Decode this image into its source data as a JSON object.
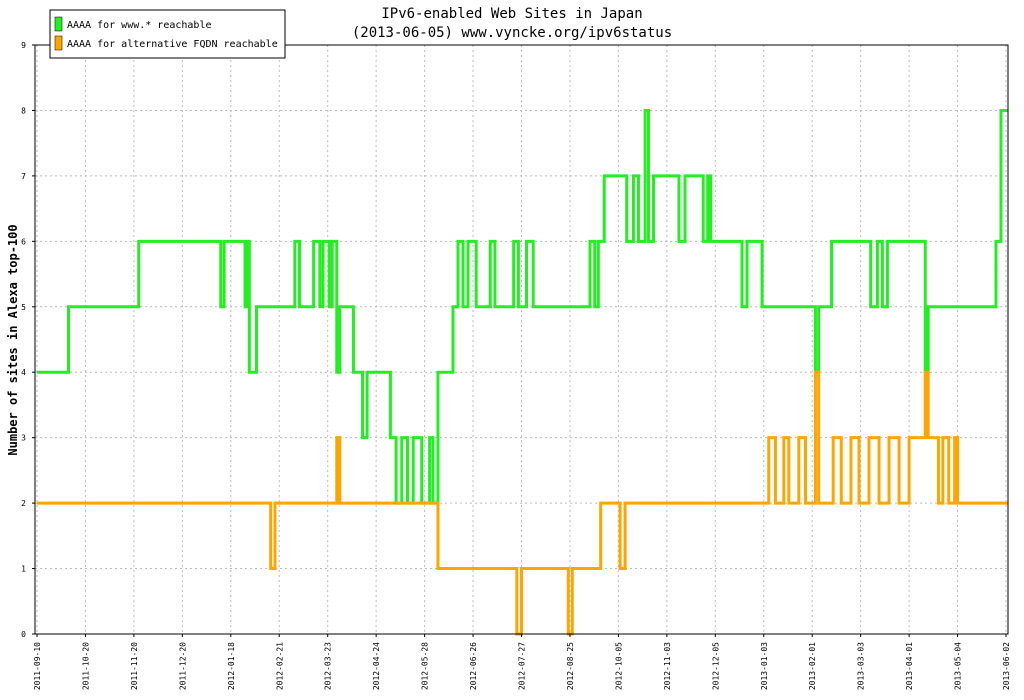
{
  "chart_data": {
    "type": "line",
    "step": "post",
    "title": "IPv6-enabled Web Sites in Japan",
    "subtitle": "(2013-06-05) www.vyncke.org/ipv6status",
    "y_label": "Number of sites in Alexa top-100",
    "grid": true,
    "legend": "upper left",
    "xlim": [
      "2011-09-10",
      "2013-06-03"
    ],
    "xticks": [
      "2011-09-10",
      "2011-10-20",
      "2011-11-20",
      "2011-12-20",
      "2012-01-18",
      "2012-02-21",
      "2012-03-23",
      "2012-04-24",
      "2012-05-28",
      "2012-06-26",
      "2012-07-27",
      "2012-08-25",
      "2012-10-05",
      "2012-11-03",
      "2012-12-05",
      "2013-01-03",
      "2013-02-01",
      "2013-03-03",
      "2013-04-01",
      "2013-05-04",
      "2013-06-02"
    ],
    "ylim": [
      0,
      9
    ],
    "yticks": [
      0,
      1,
      2,
      3,
      4,
      5,
      6,
      7,
      8,
      9
    ],
    "x": [
      "2011-09-10",
      "2011-10-06",
      "2011-11-23",
      "2012-01-12",
      "2012-01-14",
      "2012-01-28",
      "2012-01-29",
      "2012-01-31",
      "2012-02-05",
      "2012-02-15",
      "2012-02-18",
      "2012-03-02",
      "2012-03-05",
      "2012-03-14",
      "2012-03-18",
      "2012-03-20",
      "2012-03-24",
      "2012-03-26",
      "2012-03-29",
      "2012-03-31",
      "2012-04-09",
      "2012-04-15",
      "2012-04-18",
      "2012-05-04",
      "2012-05-08",
      "2012-05-12",
      "2012-05-16",
      "2012-05-20",
      "2012-05-26",
      "2012-05-31",
      "2012-06-02",
      "2012-06-05",
      "2012-06-14",
      "2012-06-17",
      "2012-06-20",
      "2012-06-23",
      "2012-06-28",
      "2012-07-07",
      "2012-07-10",
      "2012-07-22",
      "2012-07-24",
      "2012-07-25",
      "2012-07-27",
      "2012-07-30",
      "2012-08-03",
      "2012-08-24",
      "2012-08-27",
      "2012-09-11",
      "2012-09-15",
      "2012-09-18",
      "2012-09-20",
      "2012-09-23",
      "2012-10-06",
      "2012-10-09",
      "2012-10-10",
      "2012-10-14",
      "2012-10-17",
      "2012-10-21",
      "2012-10-23",
      "2012-10-26",
      "2012-11-11",
      "2012-11-15",
      "2012-11-27",
      "2012-11-30",
      "2012-12-02",
      "2012-12-21",
      "2012-12-24",
      "2013-01-02",
      "2013-01-06",
      "2013-01-10",
      "2013-01-15",
      "2013-01-18",
      "2013-01-24",
      "2013-01-28",
      "2013-02-03",
      "2013-02-05",
      "2013-02-13",
      "2013-02-14",
      "2013-02-19",
      "2013-02-25",
      "2013-03-02",
      "2013-03-08",
      "2013-03-09",
      "2013-03-13",
      "2013-03-14",
      "2013-03-16",
      "2013-03-19",
      "2013-03-20",
      "2013-03-26",
      "2013-04-01",
      "2013-04-12",
      "2013-04-14",
      "2013-04-21",
      "2013-04-24",
      "2013-04-28",
      "2013-05-02",
      "2013-05-04",
      "2013-05-27",
      "2013-05-30",
      "2013-06-03"
    ],
    "series": [
      {
        "name": "AAAA for www.* reachable",
        "color": "#22ee22",
        "values": [
          4,
          5,
          6,
          5,
          6,
          5,
          6,
          4,
          5,
          5,
          5,
          6,
          5,
          6,
          5,
          6,
          5,
          6,
          4,
          5,
          4,
          3,
          4,
          3,
          2,
          3,
          2,
          3,
          2,
          3,
          2,
          4,
          5,
          6,
          5,
          6,
          5,
          6,
          5,
          6,
          6,
          5,
          5,
          6,
          5,
          5,
          5,
          6,
          5,
          6,
          6,
          7,
          7,
          7,
          6,
          7,
          6,
          8,
          6,
          7,
          6,
          7,
          6,
          7,
          6,
          5,
          6,
          5,
          5,
          5,
          5,
          5,
          5,
          5,
          4,
          5,
          6,
          6,
          6,
          6,
          6,
          6,
          5,
          6,
          6,
          5,
          6,
          6,
          6,
          6,
          4,
          5,
          5,
          5,
          5,
          5,
          5,
          6,
          8,
          8
        ]
      },
      {
        "name": "AAAA for alternative FQDN reachable",
        "color": "#ffa500",
        "values": [
          2,
          2,
          2,
          2,
          2,
          2,
          2,
          2,
          2,
          1,
          2,
          2,
          2,
          2,
          2,
          2,
          2,
          2,
          3,
          2,
          2,
          2,
          2,
          2,
          2,
          2,
          2,
          2,
          2,
          2,
          2,
          1,
          1,
          1,
          1,
          1,
          1,
          1,
          1,
          1,
          0,
          0,
          1,
          1,
          1,
          0,
          1,
          1,
          1,
          1,
          2,
          2,
          1,
          2,
          2,
          2,
          2,
          2,
          2,
          2,
          2,
          2,
          2,
          2,
          2,
          2,
          2,
          2,
          3,
          2,
          3,
          2,
          3,
          2,
          4,
          2,
          2,
          3,
          2,
          3,
          2,
          3,
          3,
          3,
          2,
          2,
          2,
          3,
          2,
          3,
          4,
          3,
          2,
          3,
          2,
          3,
          2,
          2,
          2,
          2
        ]
      }
    ]
  }
}
